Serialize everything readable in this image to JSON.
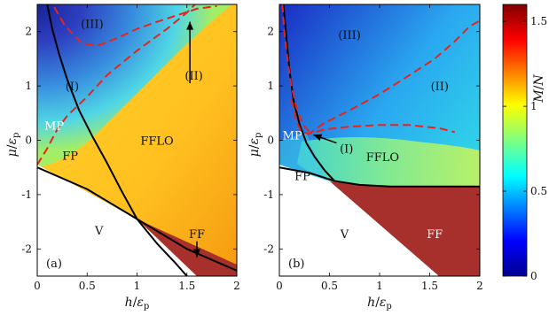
{
  "chart_data": {
    "type": "heatmap",
    "colorbar": {
      "label_main": "M",
      "label_sep": "/",
      "label_den": "N",
      "ticks": [
        "0",
        "0.5",
        "1",
        "1.5"
      ],
      "tick_values": [
        0,
        0.5,
        1,
        1.5
      ],
      "range": [
        0,
        1.6
      ],
      "colormap": "jet"
    },
    "panels": [
      {
        "id": "a",
        "label": "(a)",
        "xlim": [
          0,
          2
        ],
        "ylim": [
          -2.5,
          2.5
        ],
        "xlabel": {
          "h": "h",
          "sep": "/",
          "eps": "ε",
          "sub": "p"
        },
        "ylabel": {
          "mu": "μ",
          "sep": "/",
          "eps": "ε",
          "sub": "p"
        },
        "xticks": [
          "0",
          "0.5",
          "1",
          "1.5",
          "2"
        ],
        "yticks": [
          "-2",
          "-1",
          "0",
          "1",
          "2"
        ],
        "xtick_values": [
          0,
          0.5,
          1,
          1.5,
          2
        ],
        "ytick_values": [
          -2,
          -1,
          0,
          1,
          2
        ],
        "regions": [
          {
            "label": "(III)",
            "x": 0.55,
            "y": 2.15
          },
          {
            "label": "(II)",
            "x": 1.57,
            "y": 1.2
          },
          {
            "label": "(I)",
            "x": 0.35,
            "y": 1.0
          },
          {
            "label": "MP",
            "x": 0.17,
            "y": 0.28
          },
          {
            "label": "FFLO",
            "x": 1.2,
            "y": 0.0
          },
          {
            "label": "FP",
            "x": 0.33,
            "y": -0.28
          },
          {
            "label": "V",
            "x": 0.62,
            "y": -1.65
          },
          {
            "label": "FF",
            "x": 1.6,
            "y": -1.72
          }
        ],
        "arrows": [
          {
            "from": [
              1.53,
              1.05
            ],
            "to": [
              1.53,
              2.18
            ]
          },
          {
            "from": [
              1.6,
              -1.86
            ],
            "to": [
              1.6,
              -2.15
            ]
          }
        ],
        "solid_lines": [
          [
            [
              0.1,
              2.5
            ],
            [
              0.15,
              2.05
            ],
            [
              0.22,
              1.58
            ],
            [
              0.3,
              1.12
            ],
            [
              0.42,
              0.55
            ],
            [
              0.55,
              0.08
            ],
            [
              0.7,
              -0.42
            ],
            [
              0.85,
              -0.95
            ],
            [
              1.0,
              -1.45
            ],
            [
              1.2,
              -1.9
            ],
            [
              1.38,
              -2.25
            ],
            [
              1.5,
              -2.5
            ]
          ],
          [
            [
              0.0,
              -0.5
            ],
            [
              0.5,
              -0.9
            ],
            [
              1.0,
              -1.45
            ],
            [
              1.5,
              -2.0
            ],
            [
              2.0,
              -2.4
            ]
          ]
        ],
        "dashed_lines": [
          [
            [
              0.17,
              2.45
            ],
            [
              0.28,
              2.1
            ],
            [
              0.45,
              1.78
            ],
            [
              0.62,
              1.75
            ],
            [
              0.8,
              1.88
            ],
            [
              1.0,
              2.05
            ],
            [
              1.2,
              2.18
            ],
            [
              1.4,
              2.3
            ],
            [
              1.6,
              2.42
            ],
            [
              1.8,
              2.47
            ]
          ],
          [
            [
              0.0,
              -0.45
            ],
            [
              0.1,
              -0.15
            ],
            [
              0.2,
              0.2
            ],
            [
              0.3,
              0.45
            ],
            [
              0.5,
              0.8
            ],
            [
              0.7,
              1.2
            ],
            [
              1.0,
              1.65
            ],
            [
              1.3,
              2.05
            ],
            [
              1.5,
              2.35
            ],
            [
              1.58,
              2.5
            ]
          ]
        ]
      },
      {
        "id": "b",
        "label": "(b)",
        "xlim": [
          0,
          2
        ],
        "ylim": [
          -2.5,
          2.5
        ],
        "xlabel": {
          "h": "h",
          "sep": "/",
          "eps": "ε",
          "sub": "p"
        },
        "ylabel": {
          "mu": "μ",
          "sep": "/",
          "eps": "ε",
          "sub": "p"
        },
        "xticks": [
          "0",
          "0.5",
          "1",
          "1.5",
          "2"
        ],
        "yticks": [
          "-2",
          "-1",
          "0",
          "1",
          "2"
        ],
        "xtick_values": [
          0,
          0.5,
          1,
          1.5,
          2
        ],
        "ytick_values": [
          -2,
          -1,
          0,
          1,
          2
        ],
        "regions": [
          {
            "label": "(III)",
            "x": 0.7,
            "y": 1.95
          },
          {
            "label": "(II)",
            "x": 1.6,
            "y": 1.0
          },
          {
            "label": "MP",
            "x": 0.13,
            "y": 0.1
          },
          {
            "label": "(I)",
            "x": 0.67,
            "y": -0.15
          },
          {
            "label": "FFLO",
            "x": 1.03,
            "y": -0.3
          },
          {
            "label": "FP",
            "x": 0.23,
            "y": -0.65
          },
          {
            "label": "V",
            "x": 0.65,
            "y": -1.72
          },
          {
            "label": "FF",
            "x": 1.55,
            "y": -1.72
          }
        ],
        "arrows": [
          {
            "from": [
              0.57,
              -0.05
            ],
            "to": [
              0.34,
              0.1
            ]
          }
        ],
        "solid_lines": [
          [
            [
              0.04,
              2.5
            ],
            [
              0.07,
              1.9
            ],
            [
              0.1,
              1.3
            ],
            [
              0.14,
              0.75
            ],
            [
              0.2,
              0.3
            ],
            [
              0.27,
              -0.05
            ],
            [
              0.35,
              -0.3
            ],
            [
              0.45,
              -0.55
            ],
            [
              0.55,
              -0.75
            ]
          ],
          [
            [
              0.0,
              -0.5
            ],
            [
              0.3,
              -0.6
            ],
            [
              0.55,
              -0.75
            ],
            [
              0.8,
              -0.82
            ],
            [
              1.1,
              -0.85
            ],
            [
              1.5,
              -0.85
            ],
            [
              2.0,
              -0.85
            ]
          ]
        ],
        "dashed_lines": [
          [
            [
              0.03,
              2.5
            ],
            [
              0.05,
              1.98
            ],
            [
              0.08,
              1.5
            ],
            [
              0.12,
              1.0
            ],
            [
              0.17,
              0.6
            ],
            [
              0.23,
              0.3
            ],
            [
              0.3,
              0.15
            ]
          ],
          [
            [
              0.12,
              0.75
            ],
            [
              0.17,
              0.35
            ],
            [
              0.22,
              0.15
            ],
            [
              0.3,
              0.12
            ],
            [
              0.45,
              0.2
            ],
            [
              0.7,
              0.25
            ],
            [
              1.0,
              0.28
            ],
            [
              1.3,
              0.28
            ],
            [
              1.6,
              0.22
            ],
            [
              1.75,
              0.15
            ]
          ],
          [
            [
              0.28,
              0.1
            ],
            [
              0.45,
              0.32
            ],
            [
              0.7,
              0.55
            ],
            [
              1.0,
              0.85
            ],
            [
              1.3,
              1.2
            ],
            [
              1.55,
              1.5
            ],
            [
              1.75,
              1.82
            ],
            [
              1.9,
              2.1
            ],
            [
              2.0,
              2.2
            ]
          ]
        ]
      }
    ]
  }
}
